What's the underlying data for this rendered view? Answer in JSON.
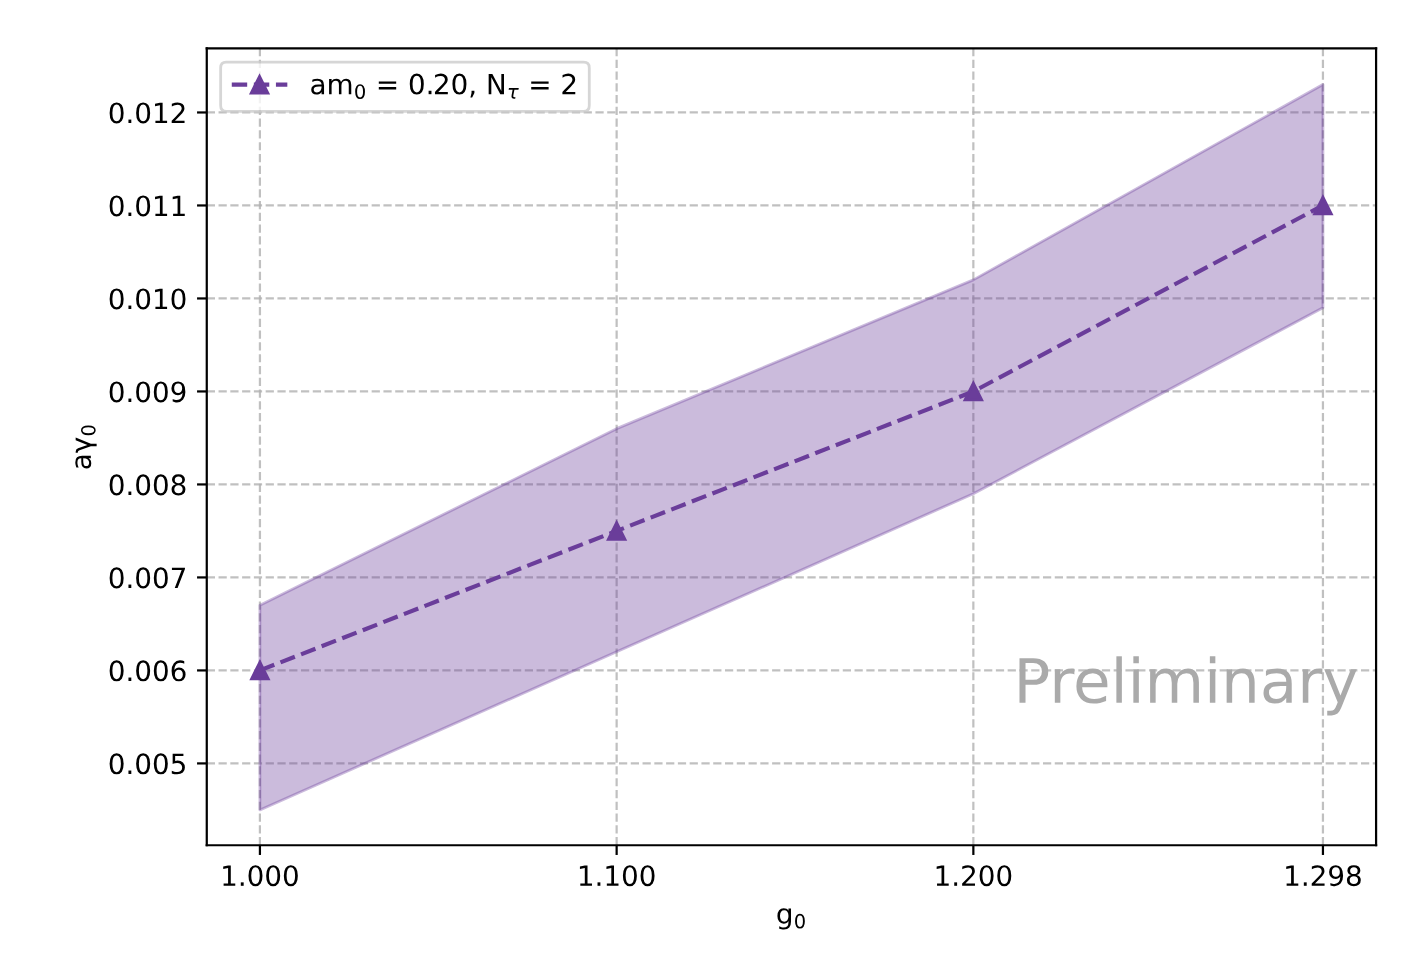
{
  "chart_data": {
    "type": "line",
    "xlabel": "g$_{0}$",
    "ylabel": "aγ$_{0}$",
    "x": [
      1.0,
      1.1,
      1.2,
      1.298
    ],
    "series": [
      {
        "name": "am$_{0}$ = 0.20, N$_{τ}$ = 2",
        "color": "#6a3d9a",
        "values": [
          0.006,
          0.0075,
          0.009,
          0.011
        ],
        "lower": [
          0.0045,
          0.0062,
          0.0079,
          0.0099
        ],
        "upper": [
          0.0067,
          0.0086,
          0.0102,
          0.0123
        ]
      }
    ],
    "xlim": [
      0.9851,
      1.3129
    ],
    "ylim": [
      0.00412,
      0.01269
    ],
    "xticks": [
      {
        "value": 1.0,
        "label": "1.000"
      },
      {
        "value": 1.1,
        "label": "1.100"
      },
      {
        "value": 1.2,
        "label": "1.200"
      },
      {
        "value": 1.298,
        "label": "1.298"
      }
    ],
    "yticks": [
      {
        "value": 0.005,
        "label": "0.005"
      },
      {
        "value": 0.006,
        "label": "0.006"
      },
      {
        "value": 0.007,
        "label": "0.007"
      },
      {
        "value": 0.008,
        "label": "0.008"
      },
      {
        "value": 0.009,
        "label": "0.009"
      },
      {
        "value": 0.01,
        "label": "0.010"
      },
      {
        "value": 0.011,
        "label": "0.011"
      },
      {
        "value": 0.012,
        "label": "0.012"
      }
    ],
    "grid": true,
    "legend": "top left",
    "marker": "triangle",
    "line_style": "dashed",
    "annotations": [
      "Preliminary"
    ]
  }
}
